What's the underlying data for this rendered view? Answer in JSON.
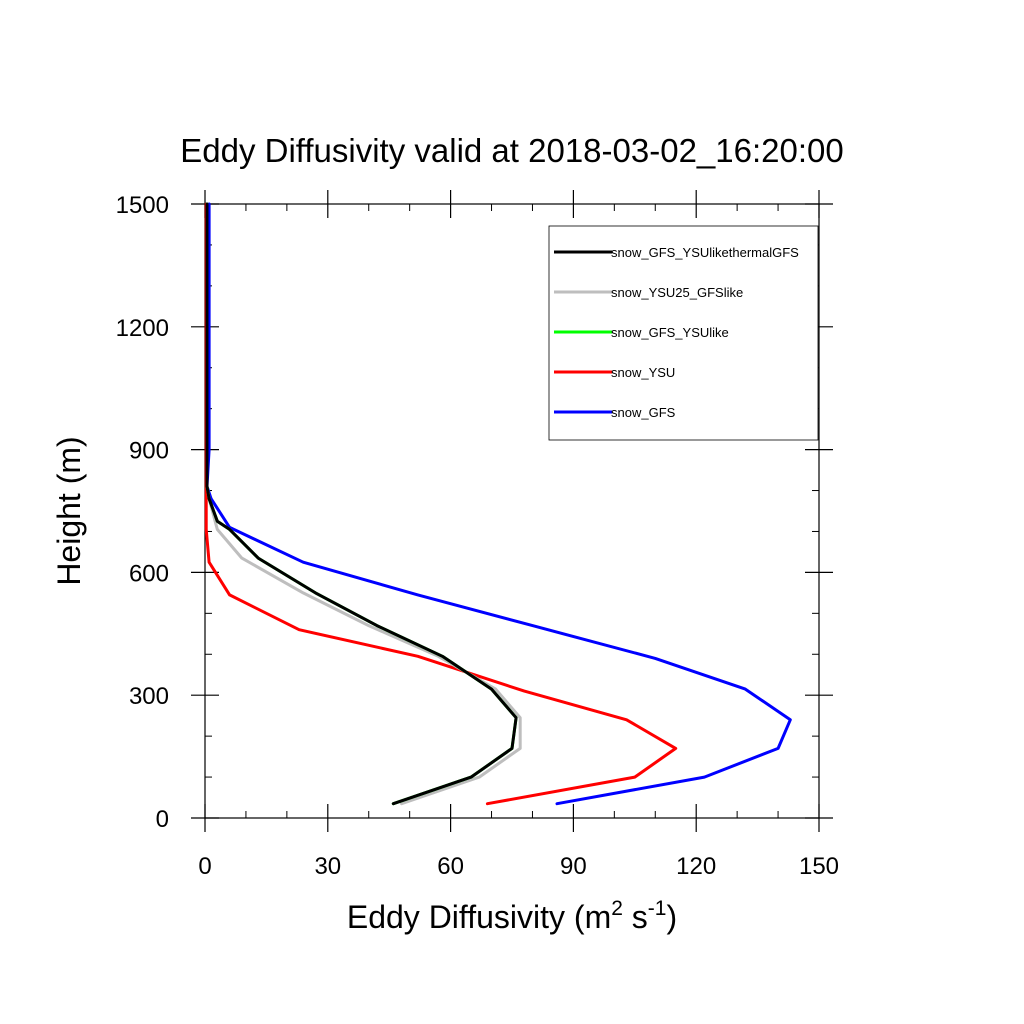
{
  "chart_data": {
    "type": "line",
    "title": "Eddy Diffusivity valid at 2018-03-02_16:20:00",
    "xlabel": "Eddy Diffusivity (m",
    "xlabel_sup1": "2",
    "xlabel_mid": " s",
    "xlabel_sup2": "-1",
    "xlabel_end": ")",
    "ylabel": "Height (m)",
    "xlim": [
      0,
      150
    ],
    "ylim": [
      0,
      1500
    ],
    "xticks": [
      0,
      30,
      60,
      90,
      120,
      150
    ],
    "yticks": [
      0,
      300,
      600,
      900,
      1200,
      1500
    ],
    "grid": false,
    "legend_position": "top-right",
    "series": [
      {
        "name": "snow_GFS_YSUlikethermalGFS",
        "color": "#000000",
        "x": [
          46,
          65,
          75,
          76,
          70,
          58,
          42,
          27,
          13,
          6,
          3,
          1,
          0.5,
          0.5,
          0.5,
          0.5,
          0.5,
          0.5,
          0.5
        ],
        "y": [
          35,
          100,
          170,
          245,
          315,
          395,
          470,
          550,
          635,
          705,
          725,
          780,
          810,
          900,
          1000,
          1100,
          1200,
          1300,
          1500
        ]
      },
      {
        "name": "snow_YSU25_GFSlike",
        "color": "#bebebe",
        "x": [
          48,
          67,
          77,
          77,
          71,
          57,
          40,
          24,
          9,
          3,
          1,
          0.5,
          0.5,
          0.5,
          0.5,
          0.5,
          0.5,
          0.5
        ],
        "y": [
          35,
          100,
          170,
          245,
          315,
          395,
          470,
          550,
          635,
          705,
          780,
          810,
          900,
          1000,
          1100,
          1200,
          1300,
          1500
        ]
      },
      {
        "name": "snow_GFS_YSUlike",
        "color": "#00ff00",
        "x": [
          46,
          65,
          75,
          76,
          70,
          58,
          42,
          27,
          13,
          6,
          3,
          1,
          0.5,
          0.5,
          0.5,
          0.5,
          0.5,
          0.5,
          0.5
        ],
        "y": [
          35,
          100,
          170,
          245,
          315,
          395,
          470,
          550,
          635,
          705,
          725,
          780,
          810,
          900,
          1000,
          1100,
          1200,
          1300,
          1500
        ]
      },
      {
        "name": "snow_YSU",
        "color": "#ff0000",
        "x": [
          69,
          105,
          115,
          103,
          78,
          52,
          23,
          6,
          1,
          0.3,
          0.3,
          0.3,
          0.3,
          0.3,
          0.3,
          0.3,
          0.3
        ],
        "y": [
          35,
          100,
          170,
          240,
          310,
          395,
          460,
          545,
          625,
          705,
          780,
          900,
          1000,
          1100,
          1200,
          1300,
          1500
        ]
      },
      {
        "name": "snow_GFS",
        "color": "#0000ff",
        "x": [
          86,
          122,
          140,
          143,
          132,
          110,
          80,
          52,
          24,
          6,
          1.5,
          0.5,
          1,
          1,
          1,
          1,
          1,
          1
        ],
        "y": [
          35,
          100,
          170,
          240,
          315,
          390,
          470,
          545,
          625,
          710,
          780,
          810,
          900,
          1000,
          1100,
          1200,
          1300,
          1500
        ]
      }
    ]
  }
}
